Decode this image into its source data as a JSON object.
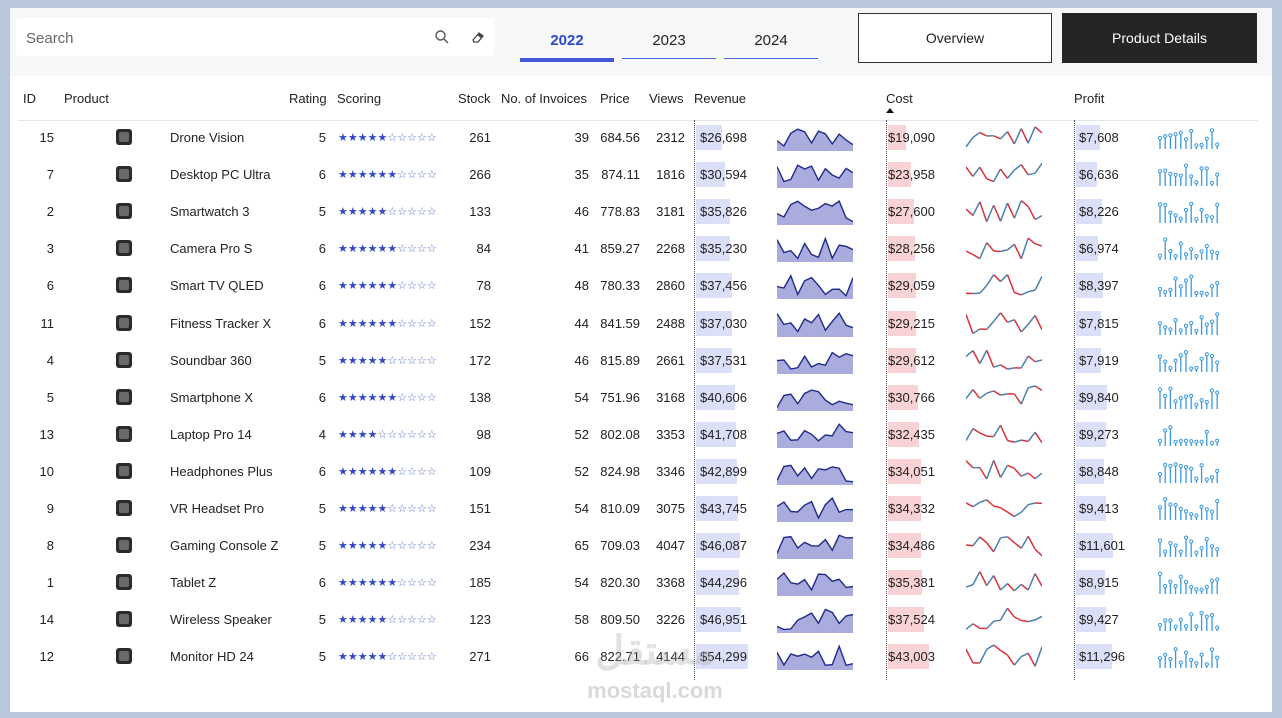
{
  "search": {
    "placeholder": "Search"
  },
  "years": [
    {
      "label": "2022",
      "active": true
    },
    {
      "label": "2023",
      "active": false
    },
    {
      "label": "2024",
      "active": false
    }
  ],
  "buttons": {
    "overview": "Overview",
    "details": "Product Details"
  },
  "columns": {
    "id": "ID",
    "product": "Product",
    "rating": "Rating",
    "scoring": "Scoring",
    "stock": "Stock",
    "invoices": "No. of Invoices",
    "price": "Price",
    "views": "Views",
    "revenue": "Revenue",
    "cost": "Cost",
    "profit": "Profit"
  },
  "rows": [
    {
      "id": "15",
      "product": "Drone Vision",
      "rating": "5",
      "stock": "261",
      "invoices": "39",
      "price": "684.56",
      "views": "2312",
      "revenue": "$26,698",
      "cost": "$19,090",
      "profit": "$7,608",
      "icon": "drone-icon"
    },
    {
      "id": "7",
      "product": "Desktop PC Ultra",
      "rating": "6",
      "stock": "266",
      "invoices": "35",
      "price": "874.11",
      "views": "1816",
      "revenue": "$30,594",
      "cost": "$23,958",
      "profit": "$6,636",
      "icon": "desktop-pc-icon"
    },
    {
      "id": "2",
      "product": "Smartwatch 3",
      "rating": "5",
      "stock": "133",
      "invoices": "46",
      "price": "778.83",
      "views": "3181",
      "revenue": "$35,826",
      "cost": "$27,600",
      "profit": "$8,226",
      "icon": "smartwatch-icon"
    },
    {
      "id": "3",
      "product": "Camera Pro S",
      "rating": "6",
      "stock": "84",
      "invoices": "41",
      "price": "859.27",
      "views": "2268",
      "revenue": "$35,230",
      "cost": "$28,256",
      "profit": "$6,974",
      "icon": "camera-icon"
    },
    {
      "id": "6",
      "product": "Smart TV QLED",
      "rating": "6",
      "stock": "78",
      "invoices": "48",
      "price": "780.33",
      "views": "2860",
      "revenue": "$37,456",
      "cost": "$29,059",
      "profit": "$8,397",
      "icon": "tv-icon"
    },
    {
      "id": "11",
      "product": "Fitness Tracker X",
      "rating": "6",
      "stock": "152",
      "invoices": "44",
      "price": "841.59",
      "views": "2488",
      "revenue": "$37,030",
      "cost": "$29,215",
      "profit": "$7,815",
      "icon": "fitness-tracker-icon"
    },
    {
      "id": "4",
      "product": "Soundbar 360",
      "rating": "5",
      "stock": "172",
      "invoices": "46",
      "price": "815.89",
      "views": "2661",
      "revenue": "$37,531",
      "cost": "$29,612",
      "profit": "$7,919",
      "icon": "soundbar-icon"
    },
    {
      "id": "5",
      "product": "Smartphone X",
      "rating": "6",
      "stock": "138",
      "invoices": "54",
      "price": "751.96",
      "views": "3168",
      "revenue": "$40,606",
      "cost": "$30,766",
      "profit": "$9,840",
      "icon": "smartphone-icon"
    },
    {
      "id": "13",
      "product": "Laptop Pro 14",
      "rating": "4",
      "stock": "98",
      "invoices": "52",
      "price": "802.08",
      "views": "3353",
      "revenue": "$41,708",
      "cost": "$32,435",
      "profit": "$9,273",
      "icon": "laptop-icon"
    },
    {
      "id": "10",
      "product": "Headphones Plus",
      "rating": "6",
      "stock": "109",
      "invoices": "52",
      "price": "824.98",
      "views": "3346",
      "revenue": "$42,899",
      "cost": "$34,051",
      "profit": "$8,848",
      "icon": "headphones-icon"
    },
    {
      "id": "9",
      "product": "VR Headset Pro",
      "rating": "5",
      "stock": "151",
      "invoices": "54",
      "price": "810.09",
      "views": "3075",
      "revenue": "$43,745",
      "cost": "$34,332",
      "profit": "$9,413",
      "icon": "vr-headset-icon"
    },
    {
      "id": "8",
      "product": "Gaming Console Z",
      "rating": "5",
      "stock": "234",
      "invoices": "65",
      "price": "709.03",
      "views": "4047",
      "revenue": "$46,087",
      "cost": "$34,486",
      "profit": "$11,601",
      "icon": "gaming-console-icon"
    },
    {
      "id": "1",
      "product": "Tablet Z",
      "rating": "6",
      "stock": "185",
      "invoices": "54",
      "price": "820.30",
      "views": "3368",
      "revenue": "$44,296",
      "cost": "$35,381",
      "profit": "$8,915",
      "icon": "tablet-icon"
    },
    {
      "id": "14",
      "product": "Wireless Speaker",
      "rating": "5",
      "stock": "123",
      "invoices": "58",
      "price": "809.50",
      "views": "3226",
      "revenue": "$46,951",
      "cost": "$37,524",
      "profit": "$9,427",
      "icon": "speaker-icon"
    },
    {
      "id": "12",
      "product": "Monitor HD 24",
      "rating": "5",
      "stock": "271",
      "invoices": "66",
      "price": "822.71",
      "views": "4144",
      "revenue": "$54,299",
      "cost": "$43,003",
      "profit": "$11,296",
      "icon": "monitor-icon"
    }
  ],
  "watermark": {
    "arabic": "مستقل",
    "latin": "mostaql.com"
  },
  "colors": {
    "accent": "#4058d8",
    "revenue_bar": "#dcdff8",
    "cost_bar": "#f9d2d5",
    "spark_fill": "#a9acdc",
    "spark_line": "#1f2a8a",
    "cost_line_up": "#4a7fb0",
    "cost_line_down": "#d8323c",
    "profit_lollipop": "#3a98e0"
  }
}
